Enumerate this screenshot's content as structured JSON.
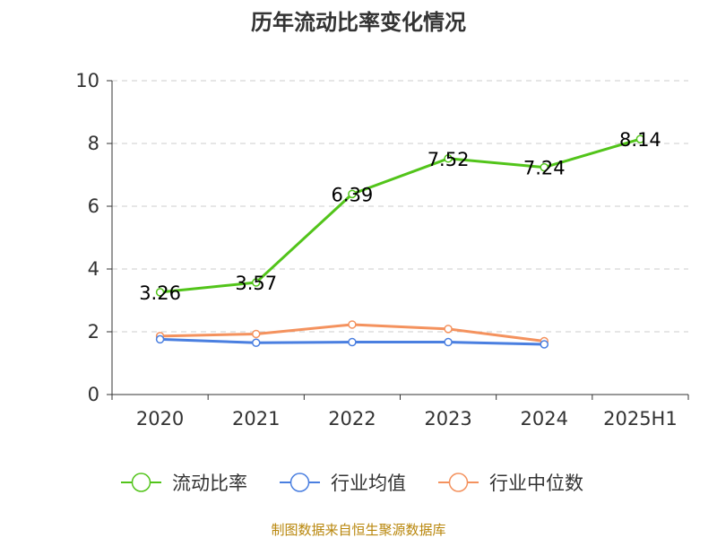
{
  "chart_data": {
    "type": "line",
    "title": "历年流动比率变化情况",
    "categories": [
      "2020",
      "2021",
      "2022",
      "2023",
      "2024",
      "2025H1"
    ],
    "ylim": [
      0,
      10
    ],
    "yticks": [
      0,
      2,
      4,
      6,
      8,
      10
    ],
    "grid": true,
    "legend_placement": "bottom",
    "series": [
      {
        "name": "流动比率",
        "values": [
          3.26,
          3.57,
          6.39,
          7.52,
          7.24,
          8.14
        ],
        "labels": [
          "3.26",
          "3.57",
          "6.39",
          "7.52",
          "7.24",
          "8.14"
        ],
        "color": "#52c41a"
      },
      {
        "name": "行业均值",
        "values": [
          1.76,
          1.65,
          1.67,
          1.67,
          1.6,
          null
        ],
        "color": "#4a7fe0"
      },
      {
        "name": "行业中位数",
        "values": [
          1.86,
          1.93,
          2.23,
          2.09,
          1.7,
          null
        ],
        "color": "#f4925e"
      }
    ]
  },
  "source_text": "制图数据来自恒生聚源数据库"
}
